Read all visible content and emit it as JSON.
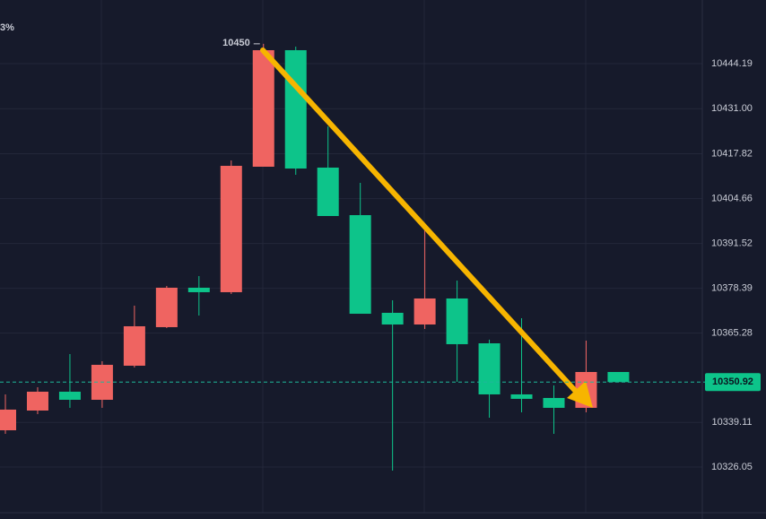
{
  "chart_data": {
    "type": "candlestick",
    "corner_text": "3%",
    "open": [
      10336.81,
      10342.59,
      10348.11,
      10345.74,
      10355.72,
      10367.01,
      10378.56,
      10377.25,
      10414.0,
      10448.13,
      10413.74,
      10399.82,
      10371.21,
      10367.79,
      10375.41,
      10362.28,
      10347.32,
      10346.27,
      10343.38,
      10353.88
    ],
    "high": [
      10347.32,
      10349.42,
      10359.13,
      10357.03,
      10373.31,
      10379.08,
      10381.97,
      10415.84,
      10450,
      10449.18,
      10425.81,
      10409.27,
      10374.88,
      10395.89,
      10380.66,
      10363.34,
      10369.63,
      10349.94,
      10363.07,
      10353.88
    ],
    "low": [
      10335.76,
      10341.54,
      10343.38,
      10343.38,
      10355.19,
      10366.74,
      10370.42,
      10376.72,
      10414.0,
      10411.64,
      10399.56,
      10370.94,
      10325.0,
      10366.48,
      10351.0,
      10340.49,
      10342.07,
      10335.76,
      10342.07,
      10350.92
    ],
    "close": [
      10342.86,
      10348.11,
      10345.74,
      10355.98,
      10367.27,
      10378.56,
      10377.25,
      10414.26,
      10448.13,
      10413.47,
      10399.56,
      10370.94,
      10367.79,
      10375.41,
      10362.02,
      10347.32,
      10346.01,
      10343.38,
      10353.88,
      10350.92
    ],
    "up_color": "#ef6461",
    "down_color": "#0dc48a",
    "ylim": [
      10312.66,
      10462.83
    ],
    "yticks": [
      10444.19,
      {
        "value": 10431,
        "label": "10431.00"
      },
      10417.82,
      10404.66,
      10391.52,
      10378.39,
      10365.28,
      10339.11,
      10326.05
    ],
    "grid": true,
    "high_marker_index": 8,
    "last_price": 10350.92
  }
}
